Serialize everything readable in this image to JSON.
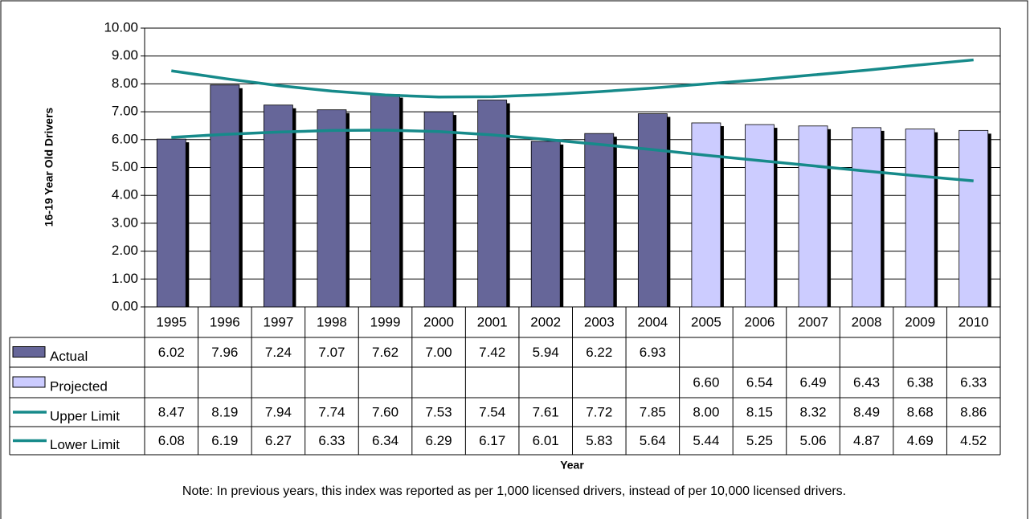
{
  "chart_data": {
    "type": "bar",
    "y_label": "16-19 Year Old Drivers",
    "x_label": "Year",
    "note": "Note:  In previous years, this index was reported as per 1,000 licensed drivers, instead of per 10,000 licensed drivers.",
    "categories": [
      "1995",
      "1996",
      "1997",
      "1998",
      "1999",
      "2000",
      "2001",
      "2002",
      "2003",
      "2004",
      "2005",
      "2006",
      "2007",
      "2008",
      "2009",
      "2010"
    ],
    "series": [
      {
        "name": "Actual",
        "type": "bar",
        "color": "#666699",
        "values": [
          6.02,
          7.96,
          7.24,
          7.07,
          7.62,
          7.0,
          7.42,
          5.94,
          6.22,
          6.93,
          null,
          null,
          null,
          null,
          null,
          null
        ],
        "value_labels": [
          "6.02",
          "7.96",
          "7.24",
          "7.07",
          "7.62",
          "7.00",
          "7.42",
          "5.94",
          "6.22",
          "6.93",
          null,
          null,
          null,
          null,
          null,
          null
        ]
      },
      {
        "name": "Projected",
        "type": "bar",
        "color": "#ccccff",
        "values": [
          null,
          null,
          null,
          null,
          null,
          null,
          null,
          null,
          null,
          null,
          6.6,
          6.54,
          6.49,
          6.43,
          6.38,
          6.33
        ],
        "value_labels": [
          null,
          null,
          null,
          null,
          null,
          null,
          null,
          null,
          null,
          null,
          "6.60",
          "6.54",
          "6.49",
          "6.43",
          "6.38",
          "6.33"
        ]
      },
      {
        "name": "Upper Limit",
        "type": "line",
        "color": "#168a8a",
        "values": [
          8.47,
          8.19,
          7.94,
          7.74,
          7.6,
          7.53,
          7.54,
          7.61,
          7.72,
          7.85,
          8.0,
          8.15,
          8.32,
          8.49,
          8.68,
          8.86
        ],
        "value_labels": [
          "8.47",
          "8.19",
          "7.94",
          "7.74",
          "7.60",
          "7.53",
          "7.54",
          "7.61",
          "7.72",
          "7.85",
          "8.00",
          "8.15",
          "8.32",
          "8.49",
          "8.68",
          "8.86"
        ]
      },
      {
        "name": "Lower Limit",
        "type": "line",
        "color": "#168a8a",
        "values": [
          6.08,
          6.19,
          6.27,
          6.33,
          6.34,
          6.29,
          6.17,
          6.01,
          5.83,
          5.64,
          5.44,
          5.25,
          5.06,
          4.87,
          4.69,
          4.52
        ],
        "value_labels": [
          "6.08",
          "6.19",
          "6.27",
          "6.33",
          "6.34",
          "6.29",
          "6.17",
          "6.01",
          "5.83",
          "5.64",
          "5.44",
          "5.25",
          "5.06",
          "4.87",
          "4.69",
          "4.52"
        ]
      }
    ],
    "ylim": [
      0,
      10
    ],
    "yticks": [
      {
        "value": 0,
        "label": "0.00"
      },
      {
        "value": 1,
        "label": "1.00"
      },
      {
        "value": 2,
        "label": "2.00"
      },
      {
        "value": 3,
        "label": "3.00"
      },
      {
        "value": 4,
        "label": "4.00"
      },
      {
        "value": 5,
        "label": "5.00"
      },
      {
        "value": 6,
        "label": "6.00"
      },
      {
        "value": 7,
        "label": "7.00"
      },
      {
        "value": 8,
        "label": "8.00"
      },
      {
        "value": 9,
        "label": "9.00"
      },
      {
        "value": 10,
        "label": "10.00"
      }
    ],
    "grid": true
  }
}
